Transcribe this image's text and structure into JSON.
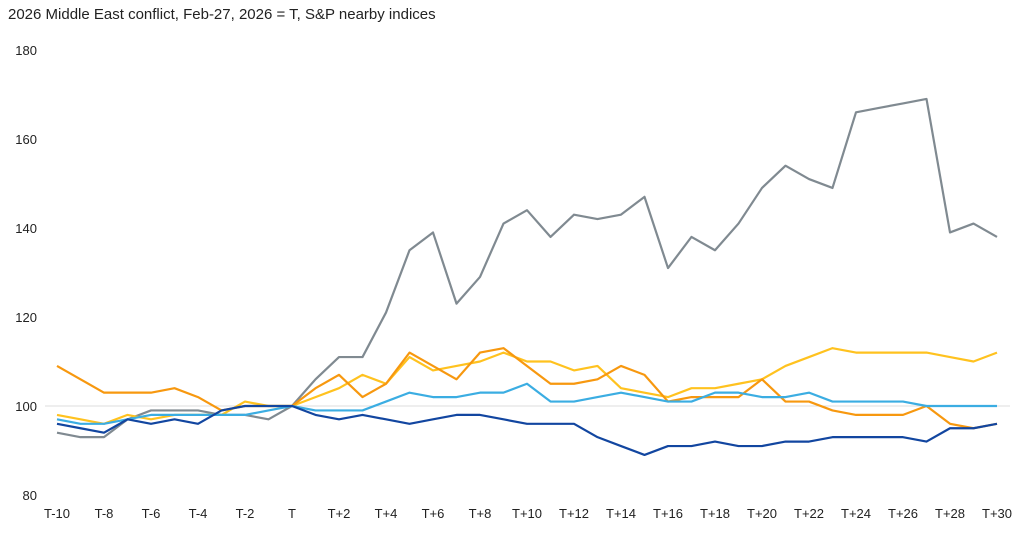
{
  "chart_data": {
    "type": "line",
    "title": "2026 Middle East conflict, Feb-27, 2026 = T, S&P nearby indices",
    "xlabel": "",
    "ylabel": "",
    "ylim": [
      80,
      180
    ],
    "yticks": [
      "80",
      "100",
      "120",
      "140",
      "160",
      "180"
    ],
    "grid": "reference line at 100 only",
    "legend": "none",
    "categories": [
      "T-10",
      "T-9",
      "T-8",
      "T-7",
      "T-6",
      "T-5",
      "T-4",
      "T-3",
      "T-2",
      "T-1",
      "T",
      "T+1",
      "T+2",
      "T+3",
      "T+4",
      "T+5",
      "T+6",
      "T+7",
      "T+8",
      "T+9",
      "T+10",
      "T+11",
      "T+12",
      "T+13",
      "T+14",
      "T+15",
      "T+16",
      "T+17",
      "T+18",
      "T+19",
      "T+20",
      "T+21",
      "T+22",
      "T+23",
      "T+24",
      "T+25",
      "T+26",
      "T+27",
      "T+28",
      "T+29",
      "T+30"
    ],
    "xtick_labels": [
      "T-10",
      "T-8",
      "T-6",
      "T-4",
      "T-2",
      "T",
      "T+2",
      "T+4",
      "T+6",
      "T+8",
      "T+10",
      "T+12",
      "T+14",
      "T+16",
      "T+18",
      "T+20",
      "T+22",
      "T+24",
      "T+26",
      "T+28",
      "T+30"
    ],
    "series": [
      {
        "color": "#808a91",
        "values": [
          94,
          93,
          93,
          97,
          99,
          99,
          99,
          98,
          98,
          97,
          100,
          106,
          111,
          111,
          121,
          135,
          139,
          123,
          129,
          141,
          144,
          138,
          143,
          142,
          143,
          147,
          131,
          138,
          135,
          141,
          149,
          154,
          151,
          149,
          166,
          167,
          168,
          169,
          139,
          141,
          138
        ]
      },
      {
        "color": "#ffc21f",
        "values": [
          98,
          97,
          96,
          98,
          97,
          98,
          98,
          98,
          101,
          100,
          100,
          102,
          104,
          107,
          105,
          111,
          108,
          109,
          110,
          112,
          110,
          110,
          108,
          109,
          104,
          103,
          102,
          104,
          104,
          105,
          106,
          109,
          111,
          113,
          112,
          112,
          112,
          112,
          111,
          110,
          112
        ]
      },
      {
        "color": "#f7980f",
        "values": [
          109,
          106,
          103,
          103,
          103,
          104,
          102,
          99,
          100,
          100,
          100,
          104,
          107,
          102,
          105,
          112,
          109,
          106,
          112,
          113,
          109,
          105,
          105,
          106,
          109,
          107,
          101,
          102,
          102,
          102,
          106,
          101,
          101,
          99,
          98,
          98,
          98,
          100,
          96,
          95,
          96
        ]
      },
      {
        "color": "#3badE2",
        "values": [
          97,
          96,
          96,
          97,
          98,
          98,
          98,
          98,
          98,
          99,
          100,
          99,
          99,
          99,
          101,
          103,
          102,
          102,
          103,
          103,
          105,
          101,
          101,
          102,
          103,
          102,
          101,
          101,
          103,
          103,
          102,
          102,
          103,
          101,
          101,
          101,
          101,
          100,
          100,
          100,
          100
        ]
      },
      {
        "color": "#1246a0",
        "values": [
          96,
          95,
          94,
          97,
          96,
          97,
          96,
          99,
          100,
          100,
          100,
          98,
          97,
          98,
          97,
          96,
          97,
          98,
          98,
          97,
          96,
          96,
          96,
          93,
          91,
          89,
          91,
          91,
          92,
          91,
          91,
          92,
          92,
          93,
          93,
          93,
          93,
          92,
          95,
          95,
          96
        ]
      }
    ]
  }
}
